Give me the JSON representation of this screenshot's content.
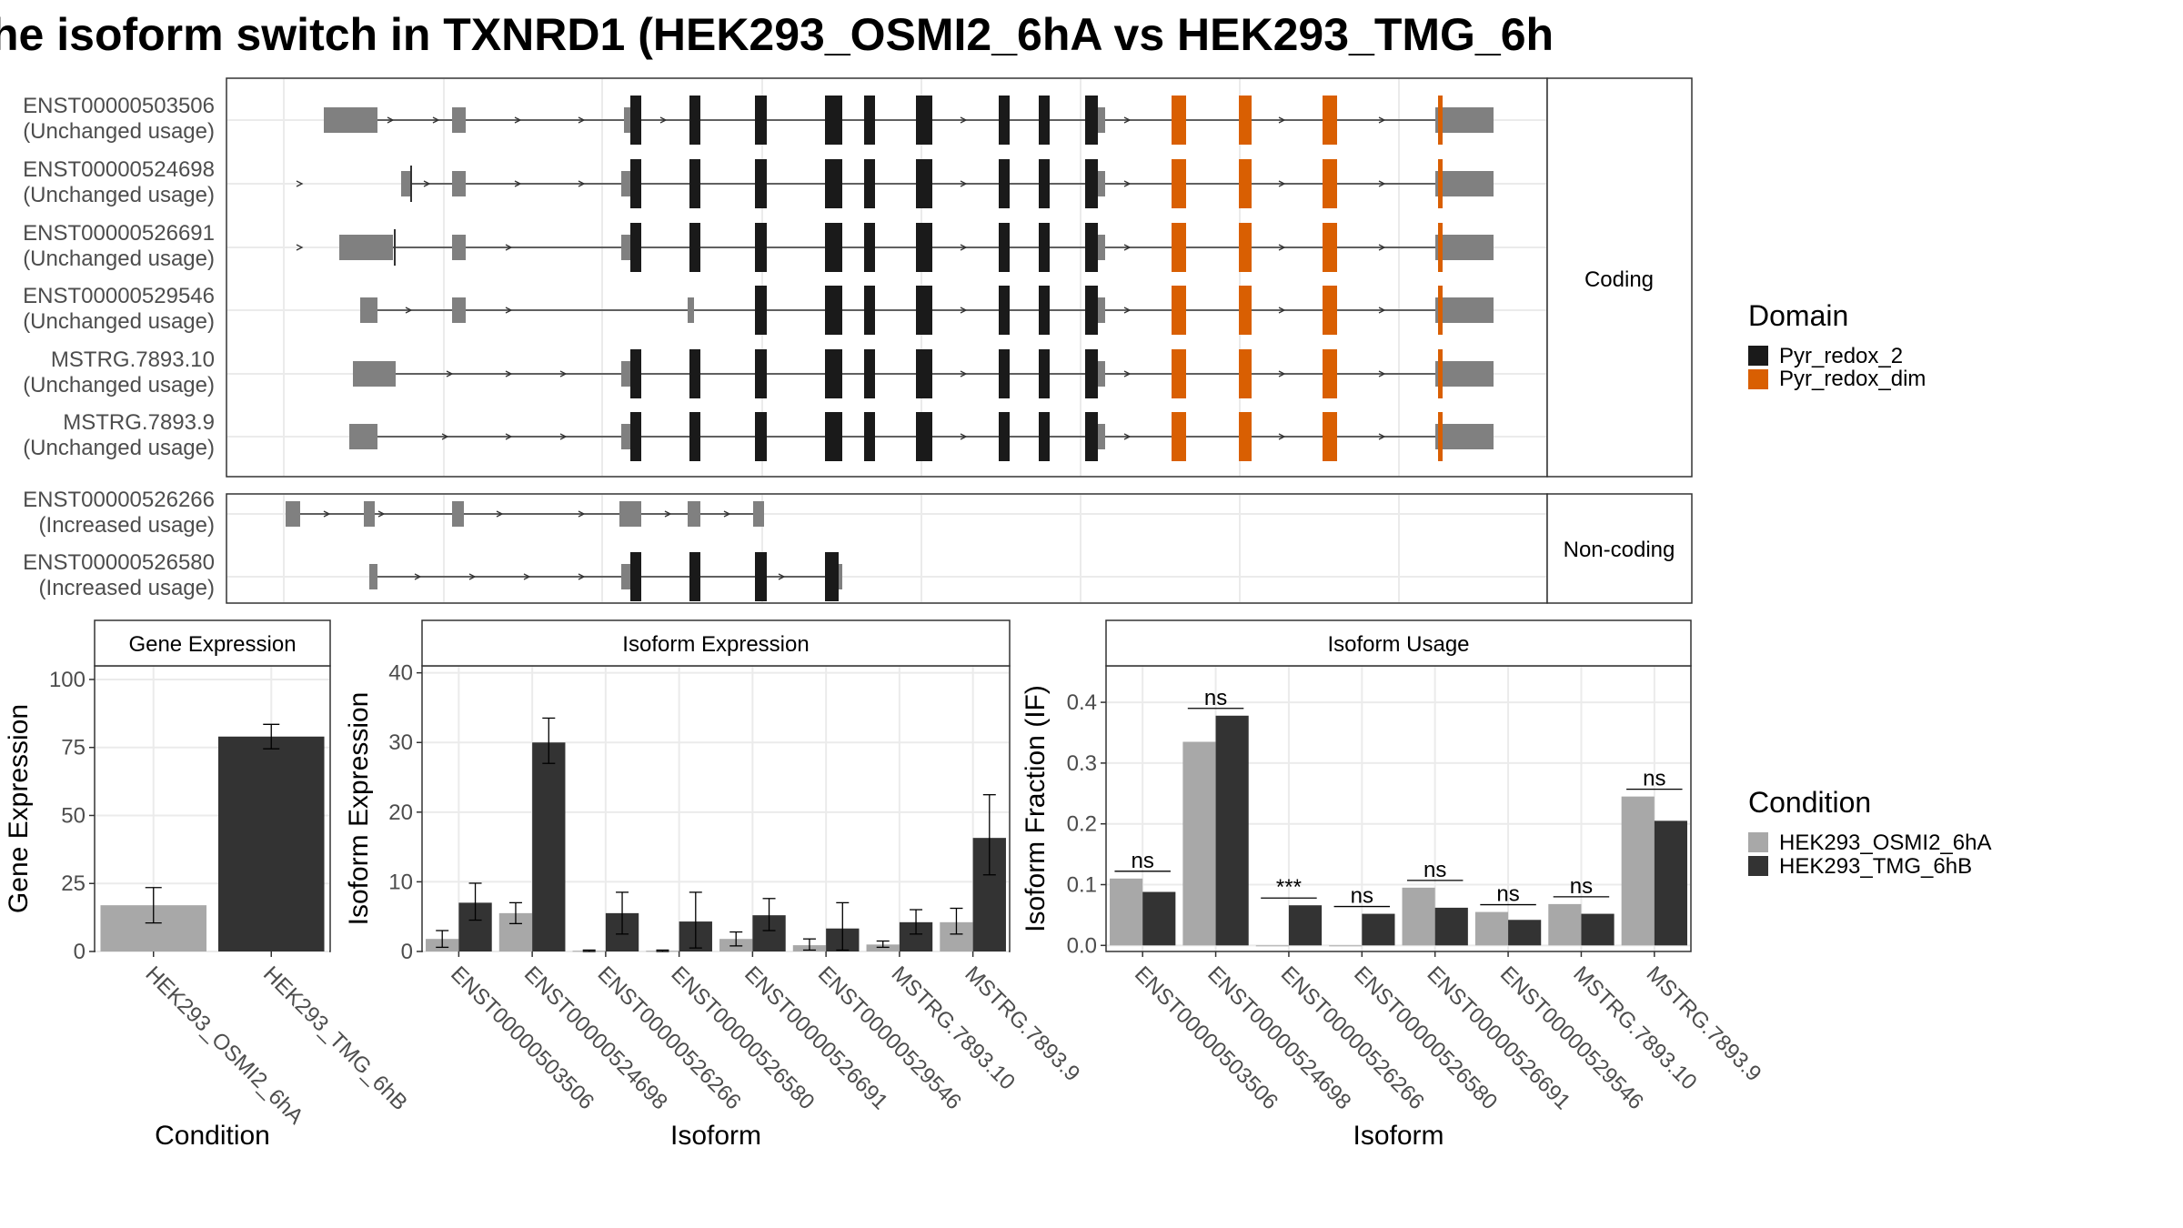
{
  "title": "he isoform switch in TXNRD1 (HEK293_OSMI2_6hA vs HEK293_TMG_6h",
  "colors": {
    "utr": "#808080",
    "cds": "#1a1a1a",
    "pyr_redox_2": "#1a1a1a",
    "pyr_redox_dim": "#d95f02",
    "cond_a": "#a8a8a8",
    "cond_b": "#333333",
    "panel_border": "#333333",
    "grid": "#ebebeb",
    "strip_bg": "#ffffff"
  },
  "structure": {
    "strip_coding": "Coding",
    "strip_noncoding": "Non-coding",
    "transcripts": [
      {
        "id": "ENST00000503506",
        "usage": "(Unchanged usage)",
        "group": "coding"
      },
      {
        "id": "ENST00000524698",
        "usage": "(Unchanged usage)",
        "group": "coding"
      },
      {
        "id": "ENST00000526691",
        "usage": "(Unchanged usage)",
        "group": "coding"
      },
      {
        "id": "ENST00000529546",
        "usage": "(Unchanged usage)",
        "group": "coding"
      },
      {
        "id": "MSTRG.7893.10",
        "usage": "(Unchanged usage)",
        "group": "coding"
      },
      {
        "id": "MSTRG.7893.9",
        "usage": "(Unchanged usage)",
        "group": "coding"
      },
      {
        "id": "ENST00000526266",
        "usage": "(Increased usage)",
        "group": "noncoding"
      },
      {
        "id": "ENST00000526580",
        "usage": "(Increased usage)",
        "group": "noncoding"
      }
    ]
  },
  "legend_domain": {
    "title": "Domain",
    "items": [
      {
        "label": "Pyr_redox_2",
        "color": "#1a1a1a"
      },
      {
        "label": "Pyr_redox_dim",
        "color": "#d95f02"
      }
    ]
  },
  "legend_condition": {
    "title": "Condition",
    "items": [
      {
        "label": "HEK293_OSMI2_6hA",
        "color": "#a8a8a8"
      },
      {
        "label": "HEK293_TMG_6hB",
        "color": "#333333"
      }
    ]
  },
  "chart_data": [
    {
      "type": "bar",
      "title": "Gene Expression",
      "xlabel": "Condition",
      "ylabel": "Gene Expression",
      "ylim": [
        0,
        105
      ],
      "yticks": [
        0,
        25,
        50,
        75,
        100
      ],
      "categories": [
        "HEK293_OSMI2_6hA",
        "HEK293_TMG_6hB"
      ],
      "values": [
        17,
        79
      ],
      "error": [
        [
          10.5,
          23.5
        ],
        [
          74.5,
          83.5
        ]
      ],
      "colors": [
        "#a8a8a8",
        "#333333"
      ]
    },
    {
      "type": "bar",
      "title": "Isoform Expression",
      "xlabel": "Isoform",
      "ylabel": "Isoform Expression",
      "ylim": [
        0,
        41
      ],
      "yticks": [
        0,
        10,
        20,
        30,
        40
      ],
      "categories": [
        "ENST00000503506",
        "ENST00000524698",
        "ENST00000526266",
        "ENST00000526580",
        "ENST00000526691",
        "ENST00000529546",
        "MSTRG.7893.10",
        "MSTRG.7893.9"
      ],
      "series": [
        {
          "name": "HEK293_OSMI2_6hA",
          "values": [
            1.8,
            5.5,
            0.1,
            0.1,
            1.8,
            0.9,
            1.0,
            4.2
          ],
          "error": [
            [
              0.6,
              3.0
            ],
            [
              4.0,
              7.0
            ],
            [
              0,
              0.2
            ],
            [
              0,
              0.2
            ],
            [
              0.8,
              2.8
            ],
            [
              0.2,
              1.8
            ],
            [
              0.6,
              1.5
            ],
            [
              2.5,
              6.2
            ]
          ]
        },
        {
          "name": "HEK293_TMG_6hB",
          "values": [
            7.0,
            30.0,
            5.5,
            4.3,
            5.2,
            3.3,
            4.2,
            16.3
          ],
          "error": [
            [
              4.5,
              9.8
            ],
            [
              27.0,
              33.5
            ],
            [
              2.5,
              8.5
            ],
            [
              0.5,
              8.5
            ],
            [
              3.0,
              7.6
            ],
            [
              0.2,
              7.0
            ],
            [
              2.5,
              6.0
            ],
            [
              11.0,
              22.5
            ]
          ]
        }
      ]
    },
    {
      "type": "bar",
      "title": "Isoform Usage",
      "xlabel": "Isoform",
      "ylabel": "Isoform Fraction (IF)",
      "ylim": [
        -0.01,
        0.46
      ],
      "yticks": [
        0.0,
        0.1,
        0.2,
        0.3,
        0.4
      ],
      "ytick_labels": [
        "0.0",
        "0.1",
        "0.2",
        "0.3",
        "0.4"
      ],
      "categories": [
        "ENST00000503506",
        "ENST00000524698",
        "ENST00000526266",
        "ENST00000526580",
        "ENST00000526691",
        "ENST00000529546",
        "MSTRG.7893.10",
        "MSTRG.7893.9"
      ],
      "series": [
        {
          "name": "HEK293_OSMI2_6hA",
          "values": [
            0.11,
            0.335,
            0.0,
            0.0,
            0.095,
            0.055,
            0.068,
            0.245
          ]
        },
        {
          "name": "HEK293_TMG_6hB",
          "values": [
            0.088,
            0.378,
            0.066,
            0.052,
            0.062,
            0.042,
            0.052,
            0.205
          ]
        }
      ],
      "significance": [
        "ns",
        "ns",
        "***",
        "ns",
        "ns",
        "ns",
        "ns",
        "ns"
      ]
    }
  ]
}
